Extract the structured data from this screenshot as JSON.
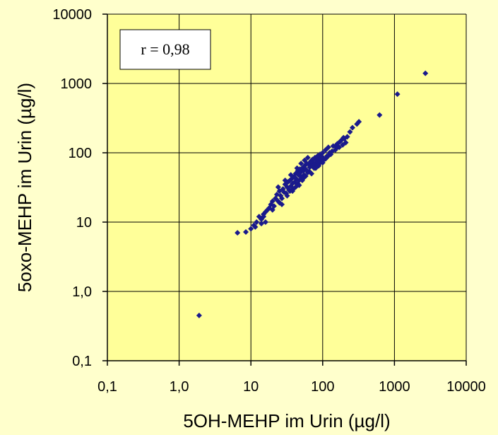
{
  "chart_data": {
    "type": "scatter",
    "xlabel": "5OH-MEHP im Urin (µg/l)",
    "ylabel": "5oxo-MEHP im Urin (µg/l)",
    "x_scale": "log",
    "y_scale": "log",
    "xlim": [
      0.1,
      10000
    ],
    "ylim": [
      0.1,
      10000
    ],
    "x_ticks": [
      {
        "value": 0.1,
        "label": "0,1"
      },
      {
        "value": 1,
        "label": "1,0"
      },
      {
        "value": 10,
        "label": "10"
      },
      {
        "value": 100,
        "label": "100"
      },
      {
        "value": 1000,
        "label": "1000"
      },
      {
        "value": 10000,
        "label": "10000"
      }
    ],
    "y_ticks": [
      {
        "value": 0.1,
        "label": "0,1"
      },
      {
        "value": 1,
        "label": "1,0"
      },
      {
        "value": 10,
        "label": "10"
      },
      {
        "value": 100,
        "label": "100"
      },
      {
        "value": 1000,
        "label": "1000"
      },
      {
        "value": 10000,
        "label": "10000"
      }
    ],
    "grid": true,
    "annotation": "r = 0,98",
    "colors": {
      "plot_bg": "#ffff99",
      "page_bg": "#ffffcc",
      "marker": "#1a1a8c"
    },
    "marker": "diamond",
    "points": [
      [
        1.9,
        0.45
      ],
      [
        6.5,
        7
      ],
      [
        8.5,
        7.2
      ],
      [
        10,
        8
      ],
      [
        11,
        9
      ],
      [
        12,
        10
      ],
      [
        11.5,
        8.5
      ],
      [
        13,
        12
      ],
      [
        14,
        11
      ],
      [
        15,
        13
      ],
      [
        14,
        9.5
      ],
      [
        16,
        14
      ],
      [
        17,
        15
      ],
      [
        15,
        12
      ],
      [
        18,
        16
      ],
      [
        19,
        18
      ],
      [
        16,
        10
      ],
      [
        20,
        20
      ],
      [
        21,
        17
      ],
      [
        22,
        22
      ],
      [
        20,
        15
      ],
      [
        23,
        25
      ],
      [
        24,
        20
      ],
      [
        25,
        28
      ],
      [
        26,
        24
      ],
      [
        27,
        22
      ],
      [
        28,
        30
      ],
      [
        25,
        19
      ],
      [
        29,
        27
      ],
      [
        30,
        35
      ],
      [
        31,
        26
      ],
      [
        32,
        32
      ],
      [
        33,
        38
      ],
      [
        34,
        29
      ],
      [
        35,
        40
      ],
      [
        36,
        33
      ],
      [
        37,
        42
      ],
      [
        38,
        36
      ],
      [
        39,
        30
      ],
      [
        40,
        45
      ],
      [
        41,
        38
      ],
      [
        42,
        50
      ],
      [
        43,
        42
      ],
      [
        44,
        35
      ],
      [
        45,
        55
      ],
      [
        46,
        48
      ],
      [
        47,
        40
      ],
      [
        48,
        58
      ],
      [
        49,
        52
      ],
      [
        50,
        45
      ],
      [
        52,
        60
      ],
      [
        54,
        55
      ],
      [
        55,
        48
      ],
      [
        56,
        65
      ],
      [
        58,
        58
      ],
      [
        60,
        70
      ],
      [
        62,
        52
      ],
      [
        64,
        68
      ],
      [
        66,
        62
      ],
      [
        68,
        75
      ],
      [
        70,
        65
      ],
      [
        72,
        80
      ],
      [
        74,
        72
      ],
      [
        76,
        60
      ],
      [
        78,
        85
      ],
      [
        80,
        70
      ],
      [
        82,
        78
      ],
      [
        85,
        90
      ],
      [
        88,
        68
      ],
      [
        90,
        82
      ],
      [
        92,
        95
      ],
      [
        95,
        75
      ],
      [
        98,
        88
      ],
      [
        100,
        100
      ],
      [
        105,
        80
      ],
      [
        110,
        110
      ],
      [
        115,
        90
      ],
      [
        120,
        120
      ],
      [
        125,
        100
      ],
      [
        130,
        95
      ],
      [
        140,
        125
      ],
      [
        150,
        110
      ],
      [
        160,
        135
      ],
      [
        170,
        120
      ],
      [
        180,
        150
      ],
      [
        190,
        130
      ],
      [
        200,
        160
      ],
      [
        210,
        140
      ],
      [
        220,
        170
      ],
      [
        240,
        200
      ],
      [
        260,
        230
      ],
      [
        300,
        260
      ],
      [
        320,
        280
      ],
      [
        620,
        350
      ],
      [
        1100,
        700
      ],
      [
        2700,
        1400
      ],
      [
        35,
        28
      ],
      [
        45,
        36
      ],
      [
        55,
        44
      ],
      [
        65,
        54
      ],
      [
        75,
        66
      ],
      [
        85,
        74
      ],
      [
        95,
        84
      ],
      [
        27,
        18
      ],
      [
        32,
        24
      ],
      [
        38,
        28
      ],
      [
        42,
        32
      ],
      [
        47,
        34
      ],
      [
        52,
        40
      ],
      [
        58,
        46
      ],
      [
        44,
        60
      ],
      [
        50,
        70
      ],
      [
        56,
        78
      ],
      [
        62,
        85
      ],
      [
        36,
        48
      ],
      [
        30,
        40
      ],
      [
        24,
        32
      ],
      [
        120,
        90
      ],
      [
        135,
        105
      ],
      [
        150,
        125
      ],
      [
        175,
        145
      ],
      [
        195,
        165
      ],
      [
        160,
        120
      ],
      [
        70,
        50
      ],
      [
        80,
        60
      ],
      [
        88,
        65
      ],
      [
        100,
        72
      ],
      [
        110,
        82
      ]
    ]
  }
}
